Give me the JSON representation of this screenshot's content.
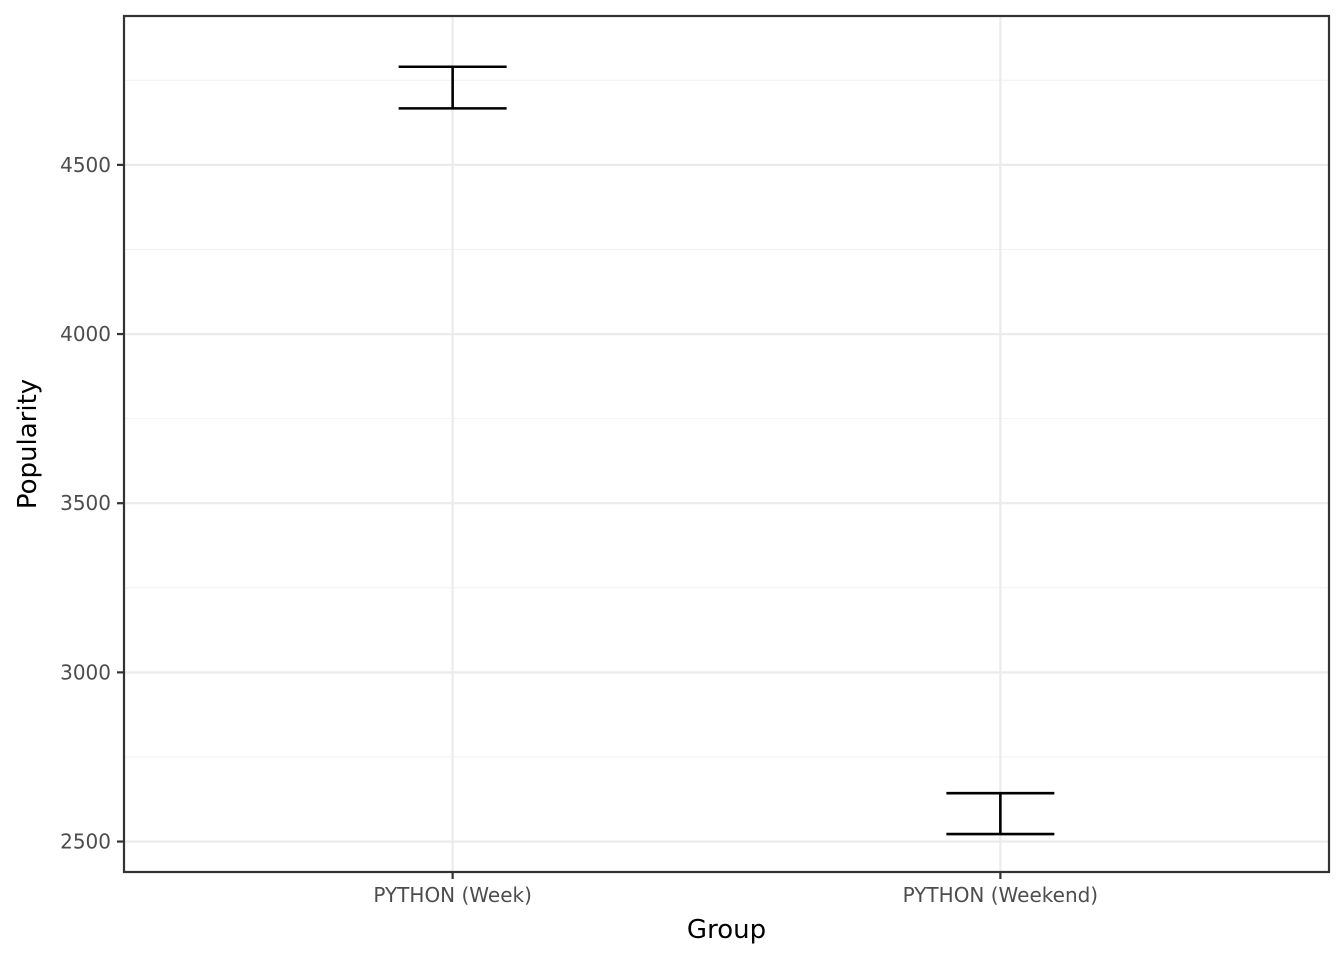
{
  "chart_data": {
    "type": "errorbar",
    "xlabel": "Group",
    "ylabel": "Popularity",
    "categories": [
      "PYTHON (Week)",
      "PYTHON (Weekend)"
    ],
    "series": [
      {
        "lower": [
          4667,
          2522
        ],
        "upper": [
          4790,
          2643
        ]
      }
    ],
    "ylim": [
      2410,
      4940
    ],
    "yticks": [
      2500,
      3000,
      3500,
      4000,
      4500
    ],
    "ytick_labels": [
      "2500",
      "3000",
      "3500",
      "4000",
      "4500"
    ],
    "grid": true,
    "legend": "none"
  },
  "colors": {
    "errorbar": "#000000",
    "grid_major": "#ebebeb",
    "grid_minor": "#f2f2f2",
    "panel_border": "#333333"
  }
}
